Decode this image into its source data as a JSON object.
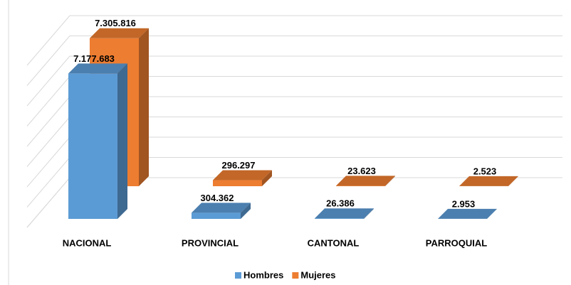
{
  "chart_data": {
    "type": "bar3d",
    "categories": [
      "NACIONAL",
      "PROVINCIAL",
      "CANTONAL",
      "PARROQUIAL"
    ],
    "series": [
      {
        "name": "Hombres",
        "color": "#5b9bd5",
        "values": [
          7177683,
          304362,
          26386,
          2953
        ],
        "value_labels": [
          "7.177.683",
          "304.362",
          "26.386",
          "2.953"
        ]
      },
      {
        "name": "Mujeres",
        "color": "#ed7d31",
        "values": [
          7305816,
          296297,
          23623,
          2523
        ],
        "value_labels": [
          "7.305.816",
          "296.297",
          "23.623",
          "2.523"
        ]
      }
    ],
    "ylim": [
      0,
      8000000
    ],
    "yticks": [
      0,
      1000000,
      2000000,
      3000000,
      4000000,
      5000000,
      6000000,
      7000000,
      8000000
    ],
    "grid": true,
    "legend": "bottom"
  }
}
